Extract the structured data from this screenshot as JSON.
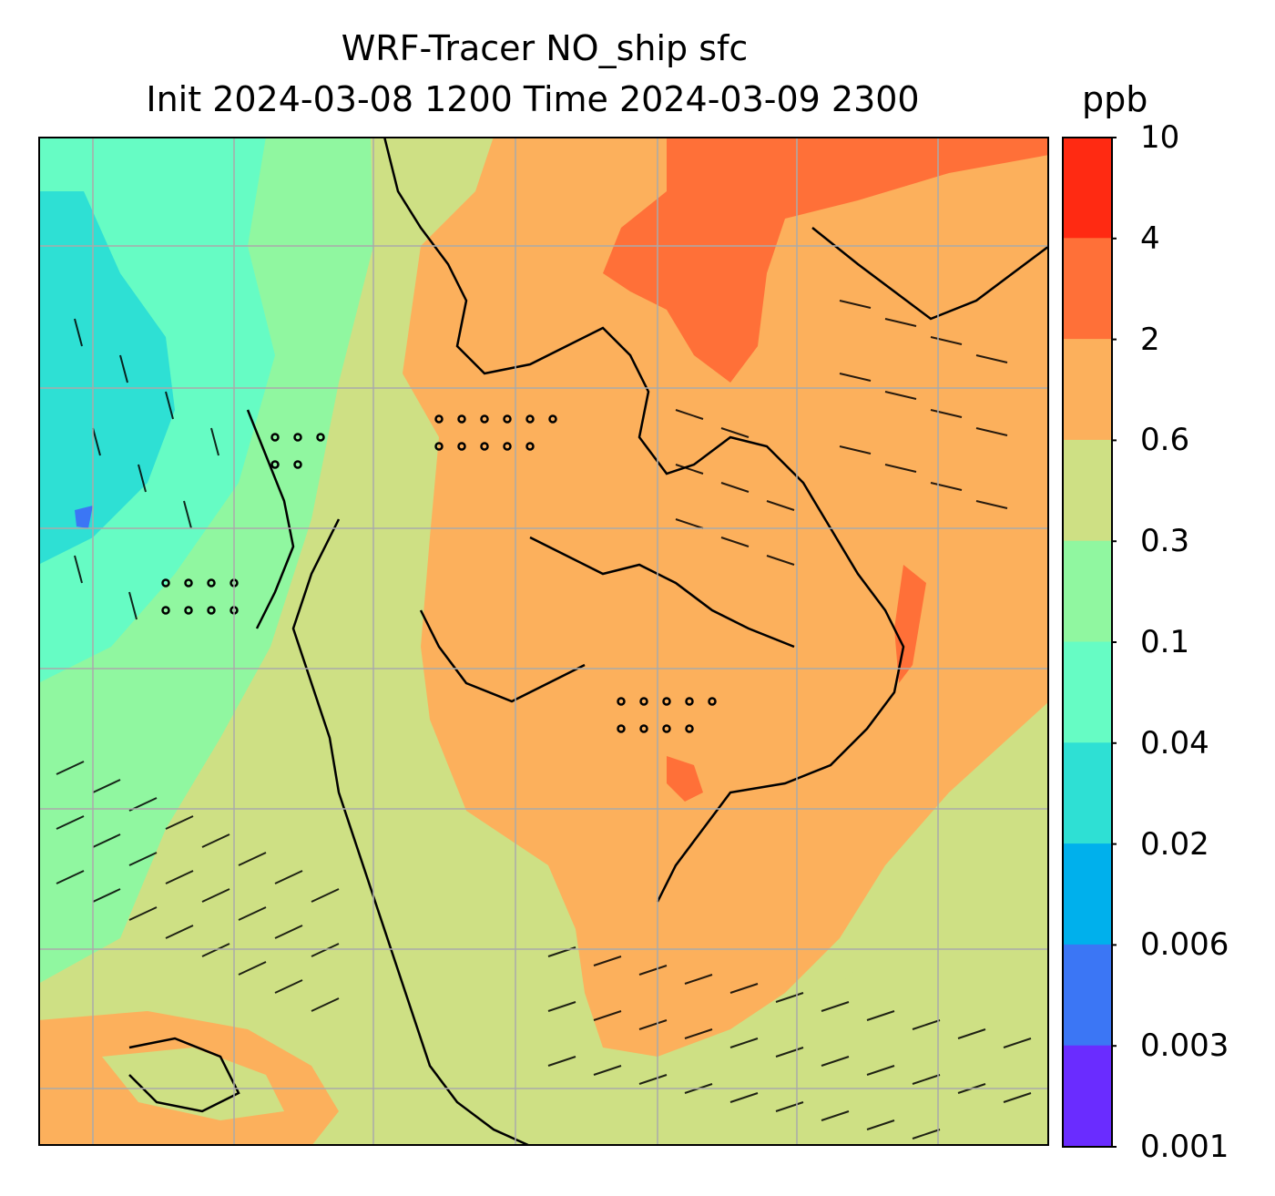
{
  "title": "WRF-Tracer NO_ship sfc",
  "subtitle": "Init 2024-03-08 1200 Time 2024-03-09 2300",
  "units": "ppb",
  "colorbar": {
    "levels": [
      "0.001",
      "0.003",
      "0.006",
      "0.02",
      "0.04",
      "0.1",
      "0.3",
      "0.6",
      "2",
      "4",
      "10"
    ],
    "colors": [
      "#6a2cff",
      "#3b76f5",
      "#00b0ec",
      "#2ee0d4",
      "#66fcc4",
      "#90f7a0",
      "#cee084",
      "#fcb05c",
      "#ff7038",
      "#ff2a12"
    ]
  },
  "map_colors": {
    "land_outline": "#000000",
    "grid": "#aaaaaa",
    "wind_barb": "#000000"
  },
  "chart_data": {
    "type": "heatmap",
    "variable": "NO_ship",
    "level": "sfc",
    "units": "ppb",
    "bounds": [
      "0.001",
      "0.003",
      "0.006",
      "0.02",
      "0.04",
      "0.1",
      "0.3",
      "0.6",
      "2",
      "4",
      "10"
    ],
    "grid": true,
    "overlay": "wind barbs"
  }
}
